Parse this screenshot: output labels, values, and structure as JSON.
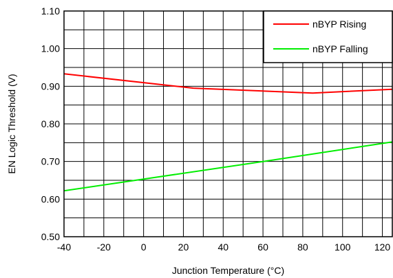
{
  "chart_data": {
    "type": "line",
    "xlabel": "Junction Temperature (°C)",
    "ylabel": "EN Logic Threshold (V)",
    "xlim": [
      -40,
      125
    ],
    "ylim": [
      0.5,
      1.1
    ],
    "x_ticks": [
      -40,
      -20,
      0,
      20,
      40,
      60,
      80,
      100,
      120
    ],
    "x_tick_labels": [
      "-40",
      "-20",
      "0",
      "20",
      "40",
      "60",
      "80",
      "100",
      "120"
    ],
    "y_ticks": [
      0.5,
      0.6,
      0.7,
      0.8,
      0.9,
      1.0,
      1.1
    ],
    "y_tick_labels": [
      "0.50",
      "0.60",
      "0.70",
      "0.80",
      "0.90",
      "1.00",
      "1.10"
    ],
    "x_minor_step": 10,
    "y_minor_step": 0.05,
    "grid": true,
    "legend_position": "top-right",
    "series": [
      {
        "name": "nBYP Rising",
        "color": "#ff0000",
        "x": [
          -40,
          25,
          85,
          125
        ],
        "y": [
          0.933,
          0.895,
          0.882,
          0.892
        ]
      },
      {
        "name": "nBYP Falling",
        "color": "#00ee00",
        "x": [
          -40,
          60,
          125
        ],
        "y": [
          0.622,
          0.7,
          0.752
        ]
      }
    ]
  }
}
